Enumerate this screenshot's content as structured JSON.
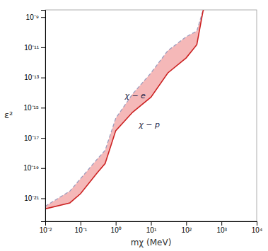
{
  "chart_data": {
    "type": "area",
    "log": true,
    "grid": false,
    "color": "#f5b8b8",
    "x_label": "mχ (MeV)",
    "y_label": "ε²",
    "xlim": [
      0.01,
      10000.0
    ],
    "ylim": [
      3e-23,
      3e-09
    ],
    "xticks": [
      {
        "value": 0.01,
        "label": "10⁻²"
      },
      {
        "value": 0.1,
        "label": "10⁻¹"
      },
      {
        "value": 1,
        "label": "10⁰"
      },
      {
        "value": 10,
        "label": "10¹"
      },
      {
        "value": 100,
        "label": "10²"
      },
      {
        "value": 1000,
        "label": "10³"
      },
      {
        "value": 10000,
        "label": "10⁴"
      }
    ],
    "yticks": [
      {
        "value": 1e-21,
        "label": "10⁻²¹"
      },
      {
        "value": 1e-19,
        "label": "10⁻¹⁹"
      },
      {
        "value": 1e-17,
        "label": "10⁻¹⁷"
      },
      {
        "value": 1e-15,
        "label": "10⁻¹⁵"
      },
      {
        "value": 1e-13,
        "label": "10⁻¹³"
      },
      {
        "value": 1e-11,
        "label": "10⁻¹¹"
      },
      {
        "value": 1e-09,
        "label": "10⁻⁹"
      }
    ],
    "x": [
      0.01,
      0.05,
      0.1,
      0.3,
      0.5,
      1,
      3,
      10,
      30,
      100,
      200,
      300
    ],
    "series": [
      {
        "color": "#9999bb",
        "line_style": "dashed",
        "values": [
          3e-22,
          3e-21,
          2e-20,
          4e-19,
          1.5e-18,
          2e-16,
          8e-15,
          2e-13,
          6e-12,
          5e-11,
          1.2e-10,
          2.8e-09
        ]
      },
      {
        "color": "#cc2222",
        "line_style": "solid",
        "values": [
          2e-22,
          5e-22,
          2e-21,
          5e-20,
          2e-19,
          3e-17,
          5e-16,
          5e-15,
          2e-13,
          2e-12,
          1.5e-11,
          2.5e-09
        ]
      }
    ],
    "cutoff_x": 305.0,
    "annotations": [
      {
        "text": "χ − e",
        "x": 1.8,
        "y": 4e-15
      },
      {
        "text": "χ − p",
        "x": 4.5,
        "y": 5e-17
      }
    ]
  }
}
